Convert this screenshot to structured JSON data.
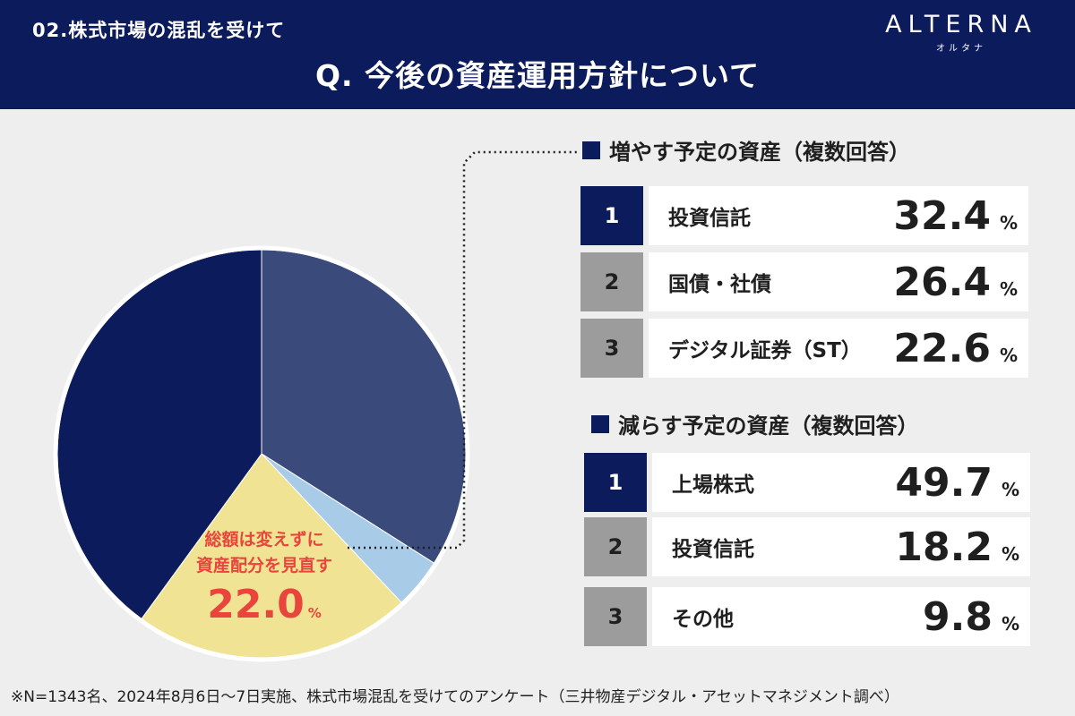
{
  "header": {
    "section_label": "02.株式市場の混乱を受けて",
    "question": "Q. 今後の資産運用方針について",
    "logo_main": "ALTERNA",
    "logo_sub": "オルタナ"
  },
  "colors": {
    "navy": "#0c1b5b",
    "slate_blue": "#3a4a7a",
    "light_blue": "#a8cbe8",
    "pale_yellow": "#f0e494",
    "accent_red": "#e8463c",
    "rank_gray": "#9c9c9c"
  },
  "chart_data": [
    {
      "type": "pie",
      "slices": [
        {
          "value": 34.0,
          "color": "#3a4a7a"
        },
        {
          "value": 4.0,
          "color": "#a8cbe8"
        },
        {
          "value": 22.0,
          "color": "#f0e494",
          "label": "総額は変えずに資産配分を見直す",
          "value_label": "22.0"
        },
        {
          "value": 40.0,
          "color": "#0c1b5b"
        }
      ],
      "annotation_line1": "総額は変えずに",
      "annotation_line2": "資産配分を見直す",
      "annotation_value": "22.0",
      "annotation_unit": "%"
    },
    {
      "type": "table",
      "title": "増やす予定の資産（複数回答）",
      "rows": [
        {
          "rank": "1",
          "label": "投資信託",
          "value": "32.4",
          "unit": "%"
        },
        {
          "rank": "2",
          "label": "国債・社債",
          "value": "26.4",
          "unit": "%"
        },
        {
          "rank": "3",
          "label": "デジタル証券（ST）",
          "value": "22.6",
          "unit": "%"
        }
      ]
    },
    {
      "type": "table",
      "title": "減らす予定の資産（複数回答）",
      "rows": [
        {
          "rank": "1",
          "label": "上場株式",
          "value": "49.7",
          "unit": "%"
        },
        {
          "rank": "2",
          "label": "投資信託",
          "value": "18.2",
          "unit": "%"
        },
        {
          "rank": "3",
          "label": "その他",
          "value": "9.8",
          "unit": "%"
        }
      ]
    }
  ],
  "footnote": "※N=1343名、2024年8月6日〜7日実施、株式市場混乱を受けてのアンケート（三井物産デジタル・アセットマネジメント調べ）"
}
